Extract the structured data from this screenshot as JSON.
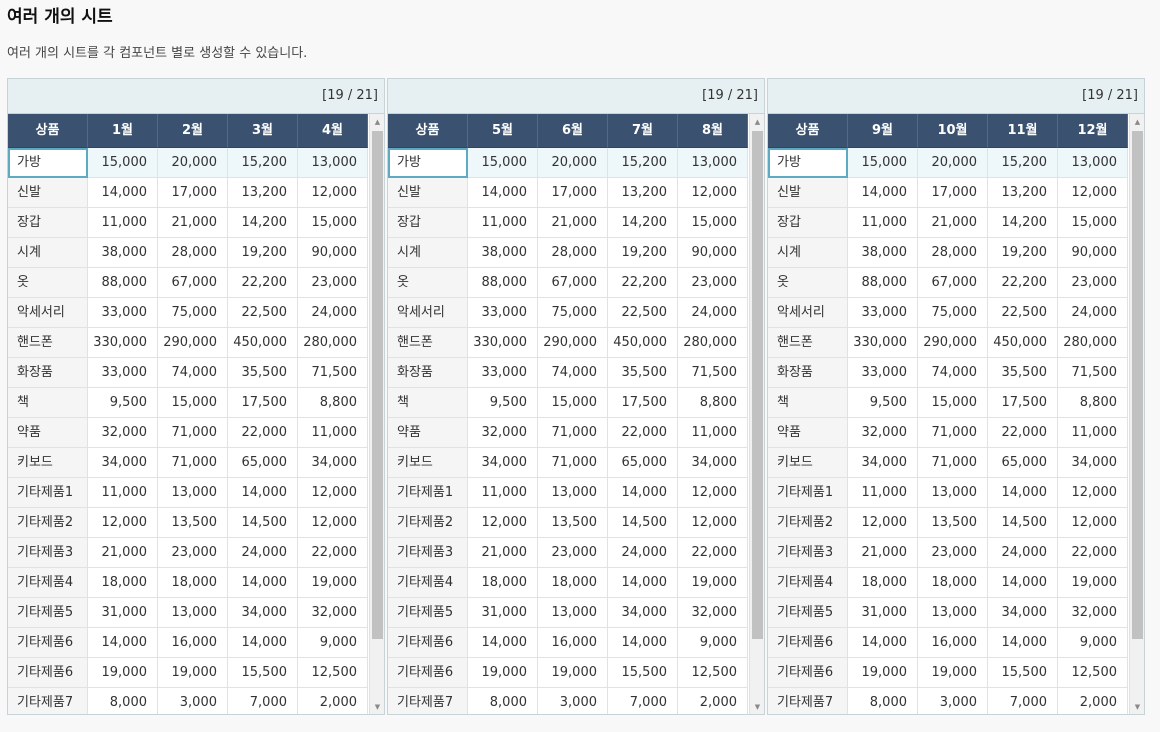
{
  "page": {
    "title": "여러 개의 시트",
    "description": "여러 개의 시트를 각 컴포넌트 별로 생성할 수 있습니다."
  },
  "sheets": [
    {
      "page_indicator": "[19 / 21]",
      "columns": [
        "상품",
        "1월",
        "2월",
        "3월",
        "4월"
      ],
      "rows": [
        [
          "가방",
          "15,000",
          "20,000",
          "15,200",
          "13,000"
        ],
        [
          "신발",
          "14,000",
          "17,000",
          "13,200",
          "12,000"
        ],
        [
          "장갑",
          "11,000",
          "21,000",
          "14,200",
          "15,000"
        ],
        [
          "시계",
          "38,000",
          "28,000",
          "19,200",
          "90,000"
        ],
        [
          "옷",
          "88,000",
          "67,000",
          "22,200",
          "23,000"
        ],
        [
          "악세서리",
          "33,000",
          "75,000",
          "22,500",
          "24,000"
        ],
        [
          "핸드폰",
          "330,000",
          "290,000",
          "450,000",
          "280,000"
        ],
        [
          "화장품",
          "33,000",
          "74,000",
          "35,500",
          "71,500"
        ],
        [
          "책",
          "9,500",
          "15,000",
          "17,500",
          "8,800"
        ],
        [
          "약품",
          "32,000",
          "71,000",
          "22,000",
          "11,000"
        ],
        [
          "키보드",
          "34,000",
          "71,000",
          "65,000",
          "34,000"
        ],
        [
          "기타제품1",
          "11,000",
          "13,000",
          "14,000",
          "12,000"
        ],
        [
          "기타제품2",
          "12,000",
          "13,500",
          "14,500",
          "12,000"
        ],
        [
          "기타제품3",
          "21,000",
          "23,000",
          "24,000",
          "22,000"
        ],
        [
          "기타제품4",
          "18,000",
          "18,000",
          "14,000",
          "19,000"
        ],
        [
          "기타제품5",
          "31,000",
          "13,000",
          "34,000",
          "32,000"
        ],
        [
          "기타제품6",
          "14,000",
          "16,000",
          "14,000",
          "9,000"
        ],
        [
          "기타제품6",
          "19,000",
          "19,000",
          "15,500",
          "12,500"
        ],
        [
          "기타제품7",
          "8,000",
          "3,000",
          "7,000",
          "2,000"
        ]
      ]
    },
    {
      "page_indicator": "[19 / 21]",
      "columns": [
        "상품",
        "5월",
        "6월",
        "7월",
        "8월"
      ],
      "rows": [
        [
          "가방",
          "15,000",
          "20,000",
          "15,200",
          "13,000"
        ],
        [
          "신발",
          "14,000",
          "17,000",
          "13,200",
          "12,000"
        ],
        [
          "장갑",
          "11,000",
          "21,000",
          "14,200",
          "15,000"
        ],
        [
          "시계",
          "38,000",
          "28,000",
          "19,200",
          "90,000"
        ],
        [
          "옷",
          "88,000",
          "67,000",
          "22,200",
          "23,000"
        ],
        [
          "악세서리",
          "33,000",
          "75,000",
          "22,500",
          "24,000"
        ],
        [
          "핸드폰",
          "330,000",
          "290,000",
          "450,000",
          "280,000"
        ],
        [
          "화장품",
          "33,000",
          "74,000",
          "35,500",
          "71,500"
        ],
        [
          "책",
          "9,500",
          "15,000",
          "17,500",
          "8,800"
        ],
        [
          "약품",
          "32,000",
          "71,000",
          "22,000",
          "11,000"
        ],
        [
          "키보드",
          "34,000",
          "71,000",
          "65,000",
          "34,000"
        ],
        [
          "기타제품1",
          "11,000",
          "13,000",
          "14,000",
          "12,000"
        ],
        [
          "기타제품2",
          "12,000",
          "13,500",
          "14,500",
          "12,000"
        ],
        [
          "기타제품3",
          "21,000",
          "23,000",
          "24,000",
          "22,000"
        ],
        [
          "기타제품4",
          "18,000",
          "18,000",
          "14,000",
          "19,000"
        ],
        [
          "기타제품5",
          "31,000",
          "13,000",
          "34,000",
          "32,000"
        ],
        [
          "기타제품6",
          "14,000",
          "16,000",
          "14,000",
          "9,000"
        ],
        [
          "기타제품6",
          "19,000",
          "19,000",
          "15,500",
          "12,500"
        ],
        [
          "기타제품7",
          "8,000",
          "3,000",
          "7,000",
          "2,000"
        ]
      ]
    },
    {
      "page_indicator": "[19 / 21]",
      "columns": [
        "상품",
        "9월",
        "10월",
        "11월",
        "12월"
      ],
      "rows": [
        [
          "가방",
          "15,000",
          "20,000",
          "15,200",
          "13,000"
        ],
        [
          "신발",
          "14,000",
          "17,000",
          "13,200",
          "12,000"
        ],
        [
          "장갑",
          "11,000",
          "21,000",
          "14,200",
          "15,000"
        ],
        [
          "시계",
          "38,000",
          "28,000",
          "19,200",
          "90,000"
        ],
        [
          "옷",
          "88,000",
          "67,000",
          "22,200",
          "23,000"
        ],
        [
          "악세서리",
          "33,000",
          "75,000",
          "22,500",
          "24,000"
        ],
        [
          "핸드폰",
          "330,000",
          "290,000",
          "450,000",
          "280,000"
        ],
        [
          "화장품",
          "33,000",
          "74,000",
          "35,500",
          "71,500"
        ],
        [
          "책",
          "9,500",
          "15,000",
          "17,500",
          "8,800"
        ],
        [
          "약품",
          "32,000",
          "71,000",
          "22,000",
          "11,000"
        ],
        [
          "키보드",
          "34,000",
          "71,000",
          "65,000",
          "34,000"
        ],
        [
          "기타제품1",
          "11,000",
          "13,000",
          "14,000",
          "12,000"
        ],
        [
          "기타제품2",
          "12,000",
          "13,500",
          "14,500",
          "12,000"
        ],
        [
          "기타제품3",
          "21,000",
          "23,000",
          "24,000",
          "22,000"
        ],
        [
          "기타제품4",
          "18,000",
          "18,000",
          "14,000",
          "19,000"
        ],
        [
          "기타제품5",
          "31,000",
          "13,000",
          "34,000",
          "32,000"
        ],
        [
          "기타제품6",
          "14,000",
          "16,000",
          "14,000",
          "9,000"
        ],
        [
          "기타제품6",
          "19,000",
          "19,000",
          "15,500",
          "12,500"
        ],
        [
          "기타제품7",
          "8,000",
          "3,000",
          "7,000",
          "2,000"
        ]
      ]
    }
  ],
  "selected_row_index": 0,
  "colors": {
    "header_bg": "#3a5270",
    "topbar_bg": "#e6eff2",
    "selection_border": "#5fa9c2"
  }
}
